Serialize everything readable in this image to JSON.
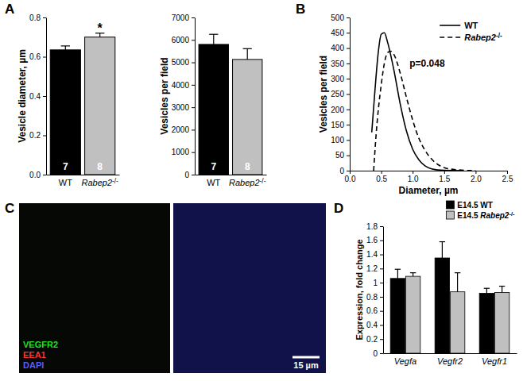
{
  "chart_data": [
    {
      "type": "bar",
      "panel": "A",
      "categories": [
        "WT",
        "Rabep2-/-"
      ],
      "values": [
        0.635,
        0.7
      ],
      "errors": [
        0.02,
        0.02
      ],
      "colors": [
        "#000000",
        "#c0c0c0"
      ],
      "n": [
        7,
        8
      ],
      "significance": [
        null,
        "*"
      ],
      "y_label": "Vesicle diameter, µm",
      "ylim": [
        0,
        0.8
      ],
      "yticks": [
        {
          "value": 0,
          "label": "0.0"
        },
        0.2,
        0.4,
        0.6,
        0.8
      ]
    },
    {
      "type": "bar",
      "categories": [
        "WT",
        "Rabep2-/-"
      ],
      "values": [
        5800,
        5130
      ],
      "errors": [
        450,
        480
      ],
      "colors": [
        "#000000",
        "#c0c0c0"
      ],
      "n": [
        7,
        8
      ],
      "y_label": "Vesicles per field",
      "ylim": [
        0,
        7000
      ],
      "yticks": [
        0,
        1000,
        2000,
        3000,
        4000,
        5000,
        6000,
        7000
      ]
    },
    {
      "type": "line",
      "panel": "B",
      "x_label": "Diameter, µm",
      "y_label": "Vesicles per field",
      "annotation": "p=0.048",
      "legend": "top-right",
      "xlim": [
        0,
        2.5
      ],
      "xticks": [
        {
          "value": 0,
          "label": "0.0"
        },
        {
          "value": 0.5,
          "label": "0.5"
        },
        {
          "value": 1,
          "label": "1.0"
        },
        {
          "value": 1.5,
          "label": "1.5"
        },
        {
          "value": 2,
          "label": "2.0"
        },
        {
          "value": 2.5,
          "label": "2.5"
        }
      ],
      "ylim": [
        0,
        500
      ],
      "yticks": [
        0,
        50,
        100,
        150,
        200,
        250,
        300,
        350,
        400,
        450,
        500
      ],
      "series": [
        {
          "name": "WT",
          "color": "#000000",
          "line_style": "solid",
          "x": [
            0.35,
            0.4,
            0.45,
            0.5,
            0.55,
            0.6,
            0.7,
            0.8,
            0.9,
            1.0,
            1.1,
            1.2,
            1.3,
            1.5,
            1.8
          ],
          "values": [
            125,
            260,
            380,
            445,
            450,
            420,
            330,
            220,
            130,
            70,
            35,
            15,
            6,
            1,
            0
          ]
        },
        {
          "name": "Rabep2-/-",
          "color": "#000000",
          "line_style": "dashed",
          "x": [
            0.38,
            0.42,
            0.5,
            0.55,
            0.6,
            0.65,
            0.7,
            0.8,
            0.9,
            1.0,
            1.1,
            1.2,
            1.3,
            1.4,
            1.5,
            1.7,
            2.0
          ],
          "values": [
            0,
            120,
            280,
            350,
            385,
            390,
            380,
            320,
            240,
            165,
            105,
            65,
            38,
            20,
            10,
            3,
            0
          ]
        }
      ]
    },
    {
      "type": "bar",
      "panel": "D",
      "categories": [
        "Vegfa",
        "Vegfr2",
        "Vegfr1"
      ],
      "y_label": "Expression, fold change",
      "legend": "top",
      "ylim": [
        0,
        1.8
      ],
      "yticks": [
        0,
        0.2,
        0.4,
        0.6,
        0.8,
        1,
        1.2,
        1.4,
        1.6,
        1.8
      ],
      "series": [
        {
          "name": "E14.5 WT",
          "color": "#000000",
          "values": [
            1.06,
            1.35,
            0.85
          ],
          "errors": [
            0.13,
            0.23,
            0.07
          ]
        },
        {
          "name": "E14.5 Rabep2-/-",
          "color": "#c0c0c0",
          "values": [
            1.09,
            0.87,
            0.86
          ],
          "errors": [
            0.05,
            0.27,
            0.09
          ]
        }
      ]
    }
  ],
  "image_panel": {
    "panel": "C",
    "channels": [
      {
        "text": "VEGFR2",
        "color": "#20e020"
      },
      {
        "text": "EEA1",
        "color": "#ff3030"
      },
      {
        "text": "DAPI",
        "color": "#5a5aff"
      }
    ],
    "scale_bar": "15 µm"
  }
}
